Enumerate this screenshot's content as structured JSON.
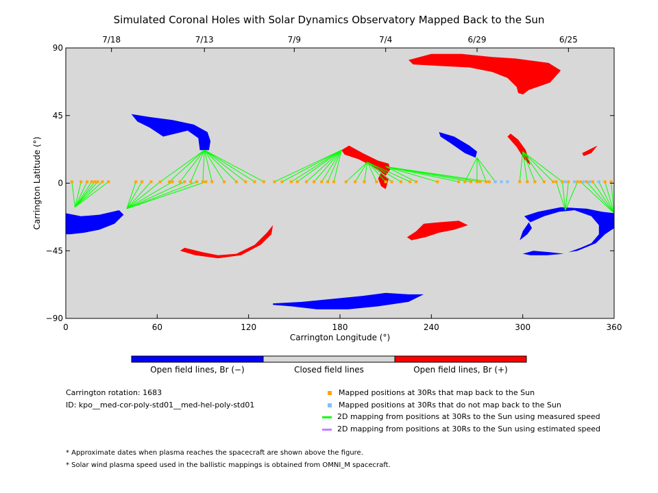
{
  "title": "Simulated Coronal Holes with Solar Dynamics Observatory Mapped Back to the Sun",
  "colors": {
    "background": "#d8d8d8",
    "open_negative": "#0000ff",
    "open_positive": "#ff0000",
    "closed": "#d8d8d8",
    "mapped_back": "#ffa500",
    "not_mapped_back": "#80c0ff",
    "measured_line": "#00ff00",
    "estimated_line": "#c080ff"
  },
  "colorbar": {
    "negative_label": "Open field lines, Br (−)",
    "closed_label": "Closed field lines",
    "positive_label": "Open field lines, Br (+)"
  },
  "info": {
    "rotation": "Carrington rotation: 1683",
    "id": "ID: kpo__med-cor-poly-std01__med-hel-poly-std01"
  },
  "legend": {
    "mapped": "Mapped positions at 30Rs that map back to the Sun",
    "not_mapped": "Mapped positions at 30Rs that do not map back to the Sun",
    "measured": "2D mapping from positions at 30Rs to the Sun using measured speed",
    "estimated": "2D mapping from positions at 30Rs to the Sun using estimated speed"
  },
  "notes": [
    "* Approximate dates when plasma reaches the spacecraft are shown above the figure.",
    "* Solar wind plasma speed used in the ballistic mappings is obtained from OMNI_M spacecraft."
  ],
  "chart_data": {
    "type": "scatter",
    "xlabel": "Carrington Longitude (°)",
    "ylabel": "Carrington Latitude (°)",
    "xlim": [
      0,
      360
    ],
    "ylim": [
      -90,
      90
    ],
    "xticks": [
      0,
      60,
      120,
      180,
      240,
      300,
      360
    ],
    "yticks": [
      -90,
      -45,
      0,
      45,
      90
    ],
    "xtick_labels": [
      "0",
      "60",
      "120",
      "180",
      "240",
      "300",
      "360"
    ],
    "ytick_labels": [
      "−90",
      "−45",
      "0",
      "45",
      "90"
    ],
    "top_axis": [
      {
        "lon": 30,
        "label": "7/18"
      },
      {
        "lon": 91,
        "label": "7/13"
      },
      {
        "lon": 150,
        "label": "7/9"
      },
      {
        "lon": 210,
        "label": "7/4"
      },
      {
        "lon": 270,
        "label": "6/29"
      },
      {
        "lon": 330,
        "label": "6/25"
      }
    ],
    "coronal_holes": [
      {
        "polarity": "negative",
        "points": [
          [
            43,
            46
          ],
          [
            55,
            44
          ],
          [
            70,
            42
          ],
          [
            84,
            39
          ],
          [
            93,
            34
          ],
          [
            95,
            28
          ],
          [
            94,
            22
          ],
          [
            88,
            22
          ],
          [
            87,
            30
          ],
          [
            80,
            35
          ],
          [
            72,
            33
          ],
          [
            68,
            32
          ],
          [
            64,
            31
          ],
          [
            55,
            37
          ],
          [
            47,
            41
          ]
        ]
      },
      {
        "polarity": "negative",
        "points": [
          [
            0,
            -20
          ],
          [
            10,
            -22
          ],
          [
            22,
            -21
          ],
          [
            35,
            -18
          ],
          [
            38,
            -21
          ],
          [
            32,
            -27
          ],
          [
            22,
            -31
          ],
          [
            12,
            -33
          ],
          [
            3,
            -34
          ],
          [
            0,
            -34
          ]
        ]
      },
      {
        "polarity": "negative",
        "points": [
          [
            136,
            -80
          ],
          [
            155,
            -79
          ],
          [
            175,
            -77
          ],
          [
            195,
            -75
          ],
          [
            210,
            -73
          ],
          [
            225,
            -74
          ],
          [
            235,
            -74
          ],
          [
            225,
            -79
          ],
          [
            205,
            -82
          ],
          [
            185,
            -84
          ],
          [
            165,
            -84
          ],
          [
            148,
            -82
          ],
          [
            136,
            -81
          ]
        ]
      },
      {
        "polarity": "negative",
        "points": [
          [
            245,
            34
          ],
          [
            255,
            31
          ],
          [
            265,
            25
          ],
          [
            270,
            21
          ],
          [
            269,
            17
          ],
          [
            262,
            20
          ],
          [
            252,
            27
          ],
          [
            246,
            31
          ]
        ]
      },
      {
        "polarity": "negative",
        "points": [
          [
            325,
            -16
          ],
          [
            310,
            -19
          ],
          [
            301,
            -22
          ],
          [
            305,
            -26
          ],
          [
            314,
            -22
          ],
          [
            324,
            -19
          ],
          [
            334,
            -18
          ],
          [
            345,
            -22
          ],
          [
            350,
            -28
          ],
          [
            350,
            -34
          ],
          [
            345,
            -40
          ],
          [
            338,
            -43
          ],
          [
            330,
            -46
          ],
          [
            336,
            -45
          ],
          [
            348,
            -40
          ],
          [
            354,
            -34
          ],
          [
            360,
            -30
          ],
          [
            360,
            -20
          ],
          [
            352,
            -19
          ],
          [
            342,
            -17
          ]
        ]
      },
      {
        "polarity": "negative",
        "points": [
          [
            304,
            -26
          ],
          [
            300,
            -32
          ],
          [
            298,
            -38
          ],
          [
            303,
            -34
          ],
          [
            306,
            -30
          ]
        ]
      },
      {
        "polarity": "negative",
        "points": [
          [
            300,
            -47
          ],
          [
            307,
            -45
          ],
          [
            318,
            -46
          ],
          [
            327,
            -47
          ],
          [
            316,
            -48
          ],
          [
            305,
            -48
          ]
        ]
      },
      {
        "polarity": "positive",
        "points": [
          [
            225,
            82
          ],
          [
            240,
            86
          ],
          [
            260,
            86
          ],
          [
            280,
            84
          ],
          [
            295,
            83
          ],
          [
            317,
            80
          ],
          [
            325,
            75
          ],
          [
            318,
            67
          ],
          [
            304,
            62
          ],
          [
            300,
            59
          ],
          [
            297,
            60
          ],
          [
            296,
            64
          ],
          [
            290,
            70
          ],
          [
            280,
            74
          ],
          [
            265,
            77
          ],
          [
            245,
            78
          ],
          [
            228,
            79
          ]
        ]
      },
      {
        "polarity": "positive",
        "points": [
          [
            181,
            22
          ],
          [
            186,
            25
          ],
          [
            195,
            20
          ],
          [
            205,
            15
          ],
          [
            212,
            13
          ],
          [
            213,
            9
          ],
          [
            210,
            5
          ],
          [
            205,
            9
          ],
          [
            200,
            12
          ],
          [
            192,
            16
          ],
          [
            183,
            19
          ]
        ]
      },
      {
        "polarity": "positive",
        "points": [
          [
            207,
            7
          ],
          [
            212,
            3
          ],
          [
            210,
            -4
          ],
          [
            207,
            -2
          ],
          [
            205,
            3
          ]
        ]
      },
      {
        "polarity": "positive",
        "points": [
          [
            292,
            33
          ],
          [
            297,
            29
          ],
          [
            302,
            22
          ],
          [
            305,
            12
          ],
          [
            301,
            16
          ],
          [
            296,
            24
          ],
          [
            290,
            31
          ]
        ]
      },
      {
        "polarity": "positive",
        "points": [
          [
            339,
            20
          ],
          [
            345,
            23
          ],
          [
            349,
            25
          ],
          [
            345,
            20
          ],
          [
            340,
            18
          ]
        ]
      },
      {
        "polarity": "positive",
        "points": [
          [
            136,
            -28
          ],
          [
            132,
            -33
          ],
          [
            124,
            -41
          ],
          [
            112,
            -47
          ],
          [
            100,
            -48
          ],
          [
            90,
            -46
          ],
          [
            78,
            -43
          ],
          [
            75,
            -45
          ],
          [
            85,
            -48
          ],
          [
            100,
            -50
          ],
          [
            115,
            -48
          ],
          [
            128,
            -41
          ],
          [
            135,
            -34
          ]
        ]
      },
      {
        "polarity": "positive",
        "points": [
          [
            235,
            -27
          ],
          [
            245,
            -26
          ],
          [
            258,
            -25
          ],
          [
            264,
            -28
          ],
          [
            255,
            -31
          ],
          [
            245,
            -33
          ],
          [
            236,
            -36
          ],
          [
            227,
            -38
          ],
          [
            224,
            -36
          ],
          [
            230,
            -32
          ]
        ]
      }
    ],
    "mapping_sets": [
      {
        "foot": [
          6,
          -16
        ],
        "lons": [
          4,
          10,
          14,
          17,
          19,
          21,
          24,
          28
        ]
      },
      {
        "foot": [
          40,
          -17
        ],
        "lons": [
          46,
          50,
          56,
          62,
          70,
          78,
          86,
          92
        ]
      },
      {
        "foot": [
          91,
          22
        ],
        "lons": [
          62,
          68,
          75,
          82,
          90,
          96,
          104,
          112,
          118,
          124,
          130
        ]
      },
      {
        "foot": [
          181,
          22
        ],
        "lons": [
          137,
          142,
          148,
          152,
          158,
          163,
          168,
          172,
          176
        ]
      },
      {
        "foot": [
          198,
          14
        ],
        "lons": [
          184,
          190,
          196,
          204,
          210,
          214,
          220,
          226
        ]
      },
      {
        "foot": [
          210,
          11
        ],
        "lons": [
          230,
          244,
          258,
          266,
          272,
          278
        ]
      },
      {
        "foot": [
          270,
          17
        ],
        "lons": [
          262,
          270,
          276,
          282
        ]
      },
      {
        "foot": [
          300,
          21
        ],
        "lons": [
          298,
          303,
          308,
          314,
          320,
          326
        ]
      },
      {
        "foot": [
          328,
          -18
        ],
        "lons": [
          322,
          326,
          330,
          336
        ]
      },
      {
        "foot": [
          360,
          -20
        ],
        "lons": [
          338,
          342,
          346,
          350,
          354,
          358
        ]
      }
    ],
    "not_mapped_lons": [
      282,
      286,
      290,
      328,
      334,
      340,
      344,
      350
    ]
  }
}
